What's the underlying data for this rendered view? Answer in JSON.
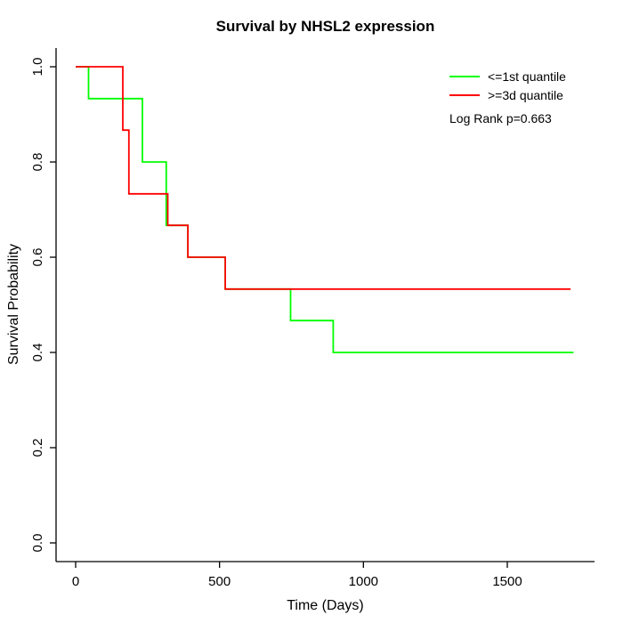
{
  "chart": {
    "title": "Survival by NHSL2 expression"
  },
  "chart_data": {
    "type": "line",
    "subtype": "kaplan-meier-step",
    "title": "Survival by NHSL2 expression",
    "xlabel": "Time (Days)",
    "ylabel": "Survival Probability",
    "x_axis": {
      "label": "Time (Days)",
      "ticks": [
        0,
        500,
        1000,
        1500
      ],
      "range": [
        0,
        1800
      ]
    },
    "y_axis": {
      "label": "Survival Probability",
      "ticks": [
        "0.0",
        "0.2",
        "0.4",
        "0.6",
        "0.8",
        "1.0"
      ],
      "range": [
        0,
        1
      ]
    },
    "annotation": "Log Rank p=0.663",
    "legend_position": "top-right",
    "grid": false,
    "series": [
      {
        "name": "<=1st quantile",
        "color": "#00FF00",
        "steps": [
          [
            0,
            1.0
          ],
          [
            45,
            0.933
          ],
          [
            232,
            0.8
          ],
          [
            315,
            0.667
          ],
          [
            390,
            0.6
          ],
          [
            520,
            0.533
          ],
          [
            747,
            0.467
          ],
          [
            895,
            0.4
          ]
        ],
        "end_time": 1730
      },
      {
        "name": ">=3d quantile",
        "color": "#FF0000",
        "steps": [
          [
            0,
            1.0
          ],
          [
            164,
            0.867
          ],
          [
            185,
            0.733
          ],
          [
            320,
            0.667
          ],
          [
            390,
            0.6
          ],
          [
            520,
            0.533
          ]
        ],
        "end_time": 1720
      }
    ]
  },
  "legend": {
    "entries": [
      {
        "label": "<=1st quantile"
      },
      {
        "label": ">=3d quantile"
      }
    ],
    "note": "Log Rank p=0.663"
  }
}
